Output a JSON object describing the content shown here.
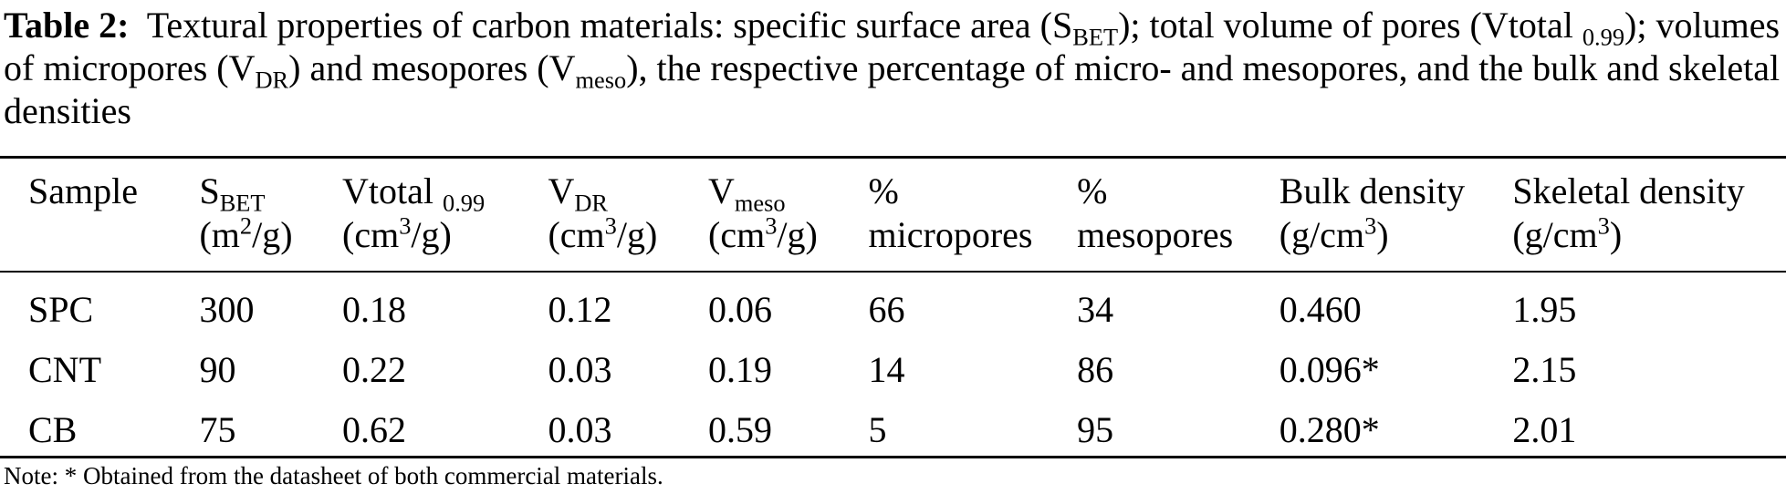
{
  "caption": {
    "label": "Table 2:",
    "text_1": "Textural properties of carbon materials: specific surface area (S",
    "sub_bet": "BET",
    "text_2": "); total volume of pores (Vtotal ",
    "sub_099": "0.99",
    "text_3": "); volumes of micropores (V",
    "sub_dr": "DR",
    "text_4": ") and mesopores (V",
    "sub_meso": "meso",
    "text_5": "), the respective percentage of micro- and mesopores, and the bulk and skeletal densities"
  },
  "table": {
    "headers": [
      {
        "line1": "Sample"
      },
      {
        "line1_main": "S",
        "line1_sub": "BET",
        "line2_pre": "(m",
        "line2_sup": "2",
        "line2_post": "/g)"
      },
      {
        "line1_main": "Vtotal ",
        "line1_sub": "0.99",
        "line2_pre": "(cm",
        "line2_sup": "3",
        "line2_post": "/g)"
      },
      {
        "line1_main": "V",
        "line1_sub": "DR",
        "line2_pre": "(cm",
        "line2_sup": "3",
        "line2_post": "/g)"
      },
      {
        "line1_main": "V",
        "line1_sub": "meso",
        "line2_pre": "(cm",
        "line2_sup": "3",
        "line2_post": "/g)"
      },
      {
        "line1": "%",
        "line2": "micropores"
      },
      {
        "line1": "%",
        "line2": "mesopores"
      },
      {
        "line1": "Bulk density",
        "line2_pre": "(g/cm",
        "line2_sup": "3",
        "line2_post": ")"
      },
      {
        "line1": "Skeletal density",
        "line2_pre": "(g/cm",
        "line2_sup": "3",
        "line2_post": ")"
      }
    ],
    "rows": [
      [
        "SPC",
        "300",
        "0.18",
        "0.12",
        "0.06",
        "66",
        "34",
        "0.460",
        "1.95"
      ],
      [
        "CNT",
        "90",
        "0.22",
        "0.03",
        "0.19",
        "14",
        "86",
        "0.096*",
        "2.15"
      ],
      [
        "CB",
        "75",
        "0.62",
        "0.03",
        "0.59",
        "5",
        "95",
        "0.280*",
        "2.01"
      ]
    ]
  },
  "note": "Note: * Obtained from the datasheet of both commercial materials."
}
